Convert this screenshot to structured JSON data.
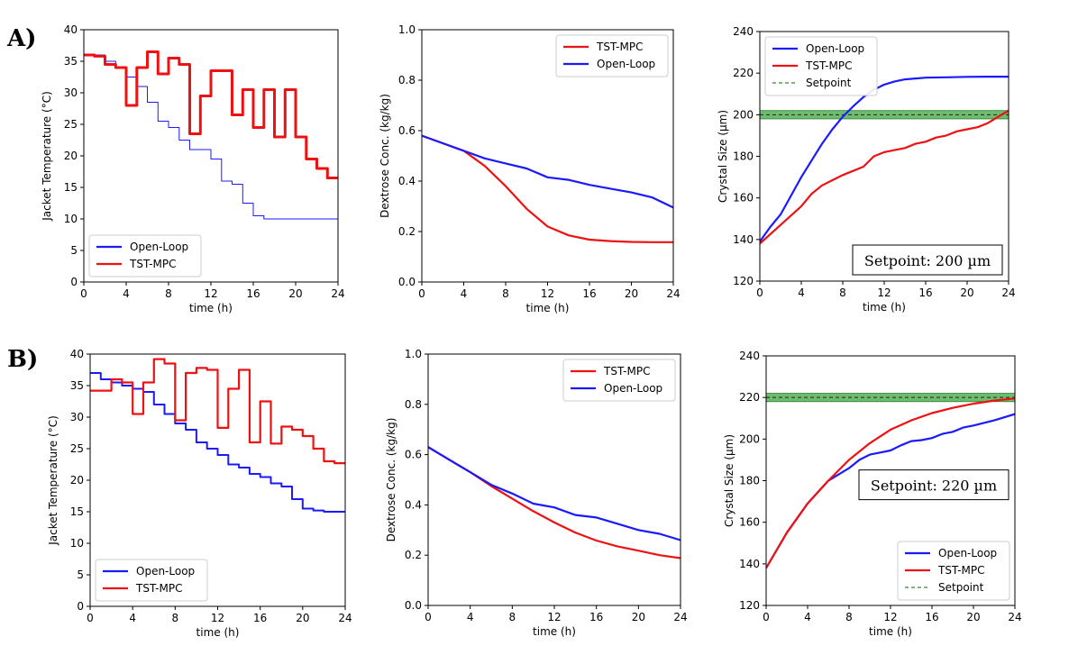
{
  "row_labels": [
    "A)",
    "B)"
  ],
  "colors": {
    "open_loop": "#1a1aff",
    "tst_mpc": "#ee1111",
    "setpoint": "#2e8b2e",
    "band": "#55b055"
  },
  "chart_data": [
    {
      "id": "A1",
      "type": "line",
      "xlabel": "time (h)",
      "ylabel": "Jacket Temperature (°C)",
      "xlim": [
        0,
        24
      ],
      "ylim": [
        0,
        40
      ],
      "xticks": [
        0,
        4,
        8,
        12,
        16,
        20,
        24
      ],
      "yticks": [
        0,
        5,
        10,
        15,
        20,
        25,
        30,
        35,
        40
      ],
      "legend": {
        "position": "lower-left"
      },
      "series": [
        {
          "name": "Open-Loop",
          "key": "open_loop",
          "width": 1,
          "step": true,
          "x": [
            0,
            1,
            2,
            3,
            4,
            5,
            6,
            7,
            8,
            9,
            10,
            11,
            12,
            13,
            14,
            15,
            16,
            17,
            18,
            19,
            20,
            21,
            22,
            23,
            24
          ],
          "y": [
            36,
            36,
            35,
            34,
            32.5,
            31,
            28.5,
            25.5,
            24.5,
            22.5,
            21,
            21,
            19.5,
            16,
            15.5,
            12.5,
            10.5,
            10,
            10,
            10,
            10,
            10,
            10,
            10,
            10
          ]
        },
        {
          "name": "TST-MPC",
          "key": "tst_mpc",
          "width": 3,
          "step": true,
          "x": [
            0,
            1,
            2,
            3,
            4,
            5,
            6,
            7,
            8,
            9,
            10,
            11,
            12,
            13,
            14,
            15,
            16,
            17,
            18,
            19,
            20,
            21,
            22,
            23,
            24
          ],
          "y": [
            36,
            35.8,
            34.5,
            34,
            28,
            34,
            36.5,
            33,
            35.5,
            34.5,
            23.5,
            29.5,
            33.5,
            33.5,
            26.5,
            30.5,
            24.5,
            30.5,
            23,
            30.5,
            23,
            19.5,
            18,
            16.5,
            16.5
          ]
        }
      ]
    },
    {
      "id": "A2",
      "type": "line",
      "xlabel": "time (h)",
      "ylabel": "Dextrose Conc. (kg/kg)",
      "xlim": [
        0,
        24
      ],
      "ylim": [
        0,
        1.0
      ],
      "xticks": [
        0,
        4,
        8,
        12,
        16,
        20,
        24
      ],
      "yticks": [
        0.0,
        0.2,
        0.4,
        0.6,
        0.8,
        1.0
      ],
      "legend": {
        "position": "top-right"
      },
      "series": [
        {
          "name": "TST-MPC",
          "key": "tst_mpc",
          "width": 2.2,
          "x": [
            0,
            2,
            4,
            6,
            8,
            10,
            12,
            14,
            16,
            18,
            20,
            22,
            24
          ],
          "y": [
            0.58,
            0.55,
            0.52,
            0.46,
            0.38,
            0.29,
            0.22,
            0.185,
            0.168,
            0.162,
            0.159,
            0.158,
            0.158
          ]
        },
        {
          "name": "Open-Loop",
          "key": "open_loop",
          "width": 2.2,
          "x": [
            0,
            2,
            4,
            6,
            8,
            10,
            12,
            14,
            16,
            18,
            20,
            22,
            24
          ],
          "y": [
            0.58,
            0.55,
            0.52,
            0.49,
            0.47,
            0.45,
            0.415,
            0.405,
            0.385,
            0.37,
            0.355,
            0.335,
            0.295
          ]
        }
      ]
    },
    {
      "id": "A3",
      "type": "line",
      "xlabel": "time (h)",
      "ylabel": "Crystal Size (µm)",
      "xlim": [
        0,
        24
      ],
      "ylim": [
        120,
        240
      ],
      "xticks": [
        0,
        4,
        8,
        12,
        16,
        20,
        24
      ],
      "yticks": [
        120,
        140,
        160,
        180,
        200,
        220,
        240
      ],
      "legend": {
        "position": "top-left"
      },
      "setpoint": 200,
      "band": [
        198,
        202
      ],
      "annotation": "Setpoint: 200 µm",
      "series": [
        {
          "name": "Open-Loop",
          "key": "open_loop",
          "width": 2.2,
          "x": [
            0,
            1,
            2,
            3,
            4,
            5,
            6,
            7,
            8,
            9,
            10,
            11,
            12,
            13,
            14,
            16,
            18,
            20,
            22,
            24
          ],
          "y": [
            139,
            146,
            152,
            161,
            170,
            178,
            186,
            193,
            199,
            204,
            208.5,
            212,
            214.5,
            216,
            217,
            217.8,
            218,
            218.2,
            218.3,
            218.3
          ]
        },
        {
          "name": "TST-MPC",
          "key": "tst_mpc",
          "width": 2.2,
          "x": [
            0,
            2,
            4,
            5,
            6,
            7,
            8,
            9,
            10,
            11,
            12,
            13,
            14,
            15,
            16,
            17,
            18,
            19,
            20,
            21,
            22,
            23,
            24
          ],
          "y": [
            138,
            147,
            156,
            162,
            166,
            168.5,
            171,
            173,
            175,
            180,
            182,
            183,
            184,
            186,
            187,
            189,
            190,
            192,
            193,
            194,
            196,
            199,
            202
          ]
        },
        {
          "name": "Setpoint",
          "key": "setpoint",
          "dashed": true,
          "legend_only": true
        }
      ]
    },
    {
      "id": "B1",
      "type": "line",
      "xlabel": "time (h)",
      "ylabel": "Jacket Temperature (°C)",
      "xlim": [
        0,
        24
      ],
      "ylim": [
        0,
        40
      ],
      "xticks": [
        0,
        4,
        8,
        12,
        16,
        20,
        24
      ],
      "yticks": [
        0,
        5,
        10,
        15,
        20,
        25,
        30,
        35,
        40
      ],
      "legend": {
        "position": "lower-left"
      },
      "series": [
        {
          "name": "Open-Loop",
          "key": "open_loop",
          "width": 2,
          "step": true,
          "x": [
            0,
            1,
            2,
            3,
            4,
            5,
            6,
            7,
            8,
            9,
            10,
            11,
            12,
            13,
            14,
            15,
            16,
            17,
            18,
            19,
            20,
            21,
            22,
            23,
            24
          ],
          "y": [
            37,
            36,
            35.5,
            35,
            34.5,
            34,
            32,
            30.5,
            29,
            28,
            26,
            25,
            24,
            22.5,
            22,
            21,
            20.5,
            19.5,
            19,
            17,
            15.5,
            15.2,
            15,
            15,
            15
          ]
        },
        {
          "name": "TST-MPC",
          "key": "tst_mpc",
          "width": 2.2,
          "step": true,
          "x": [
            0,
            1,
            2,
            3,
            4,
            5,
            6,
            7,
            8,
            9,
            10,
            11,
            12,
            13,
            14,
            15,
            16,
            17,
            18,
            19,
            20,
            21,
            22,
            23,
            24
          ],
          "y": [
            34.2,
            34.2,
            36,
            35.5,
            30.5,
            35.5,
            39.2,
            38.5,
            29.5,
            37,
            37.8,
            37.5,
            28.3,
            34.5,
            37.5,
            26,
            32.5,
            25.8,
            28.5,
            28,
            27,
            25,
            23,
            22.7,
            22.7
          ]
        }
      ]
    },
    {
      "id": "B2",
      "type": "line",
      "xlabel": "time (h)",
      "ylabel": "Dextrose Conc. (kg/kg)",
      "xlim": [
        0,
        24
      ],
      "ylim": [
        0,
        1.0
      ],
      "xticks": [
        0,
        4,
        8,
        12,
        16,
        20,
        24
      ],
      "yticks": [
        0.0,
        0.2,
        0.4,
        0.6,
        0.8,
        1.0
      ],
      "legend": {
        "position": "top-right"
      },
      "series": [
        {
          "name": "TST-MPC",
          "key": "tst_mpc",
          "width": 2.2,
          "x": [
            0,
            2,
            4,
            6,
            8,
            10,
            12,
            14,
            16,
            18,
            20,
            22,
            24
          ],
          "y": [
            0.63,
            0.58,
            0.53,
            0.475,
            0.425,
            0.375,
            0.33,
            0.29,
            0.258,
            0.235,
            0.218,
            0.2,
            0.188
          ]
        },
        {
          "name": "Open-Loop",
          "key": "open_loop",
          "width": 2.2,
          "x": [
            0,
            2,
            4,
            6,
            8,
            10,
            12,
            14,
            16,
            18,
            20,
            22,
            24
          ],
          "y": [
            0.63,
            0.58,
            0.53,
            0.48,
            0.445,
            0.405,
            0.39,
            0.36,
            0.35,
            0.325,
            0.3,
            0.285,
            0.26
          ]
        }
      ]
    },
    {
      "id": "B3",
      "type": "line",
      "xlabel": "time (h)",
      "ylabel": "Crystal Size (µm)",
      "xlim": [
        0,
        24
      ],
      "ylim": [
        120,
        240
      ],
      "xticks": [
        0,
        4,
        8,
        12,
        16,
        20,
        24
      ],
      "yticks": [
        120,
        140,
        160,
        180,
        200,
        220,
        240
      ],
      "legend": {
        "position": "bottom-right"
      },
      "setpoint": 220,
      "band": [
        218,
        222
      ],
      "annotation": "Setpoint: 220 µm",
      "series": [
        {
          "name": "Open-Loop",
          "key": "open_loop",
          "width": 2.2,
          "x": [
            0,
            2,
            4,
            6,
            7,
            8,
            9,
            10,
            11,
            12,
            13,
            14,
            15,
            16,
            17,
            18,
            19,
            20,
            22,
            24
          ],
          "y": [
            138,
            155,
            169,
            180,
            183,
            186,
            190,
            192.5,
            193.5,
            194.5,
            197,
            199,
            199.5,
            200.5,
            202.5,
            203.5,
            205.5,
            206.5,
            209,
            212
          ]
        },
        {
          "name": "TST-MPC",
          "key": "tst_mpc",
          "width": 2.2,
          "x": [
            0,
            2,
            4,
            6,
            8,
            10,
            12,
            14,
            16,
            18,
            20,
            22,
            24
          ],
          "y": [
            138,
            155,
            169,
            180,
            190,
            198,
            204.5,
            209,
            212.5,
            215,
            217,
            218.5,
            219.5
          ]
        },
        {
          "name": "Setpoint",
          "key": "setpoint",
          "dashed": true,
          "legend_only": true
        }
      ]
    }
  ]
}
